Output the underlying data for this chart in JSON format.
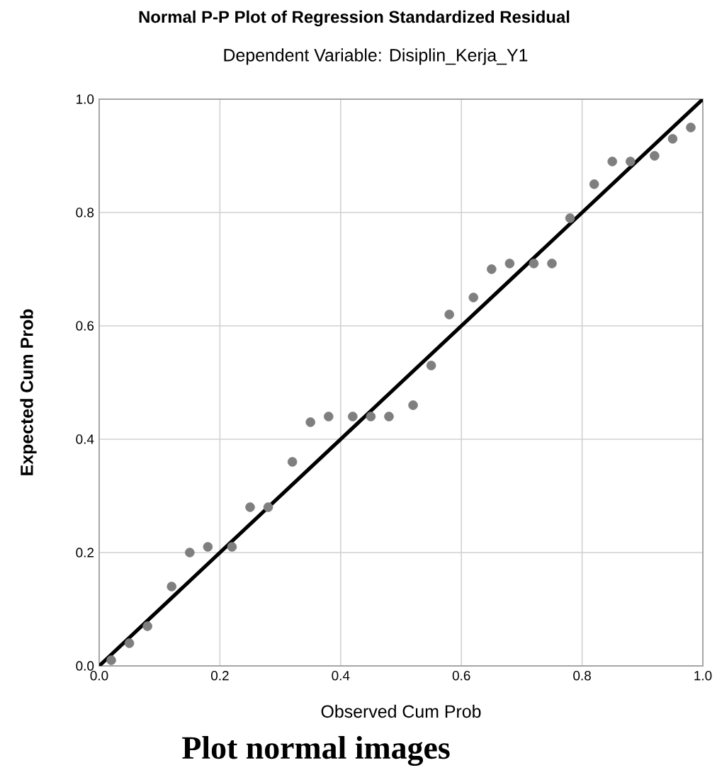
{
  "chart_data": {
    "type": "scatter",
    "title": "Normal P-P Plot of Regression Standardized Residual",
    "subtitle": "Dependent Variable: Disiplin_Kerja_Y1",
    "xlabel": "Observed Cum Prob",
    "ylabel": "Expected Cum Prob",
    "annotations": [
      "Plot normal images"
    ],
    "xlim": [
      0,
      1
    ],
    "ylim": [
      0,
      1
    ],
    "xticks": [
      {
        "value": 0,
        "label": "0.0"
      },
      {
        "value": 0.2,
        "label": "0.2"
      },
      {
        "value": 0.4,
        "label": "0.4"
      },
      {
        "value": 0.6,
        "label": "0.6"
      },
      {
        "value": 0.8,
        "label": "0.8"
      },
      {
        "value": 1,
        "label": "1.0"
      }
    ],
    "yticks": [
      {
        "value": 0,
        "label": "0.0"
      },
      {
        "value": 0.2,
        "label": "0.2"
      },
      {
        "value": 0.4,
        "label": "0.4"
      },
      {
        "value": 0.6,
        "label": "0.6"
      },
      {
        "value": 0.8,
        "label": "0.8"
      },
      {
        "value": 1,
        "label": "1.0"
      }
    ],
    "grid": true,
    "series": [
      {
        "marker": "circle",
        "color": "#7f7f7f",
        "x": [
          0.02,
          0.05,
          0.08,
          0.12,
          0.15,
          0.18,
          0.22,
          0.25,
          0.28,
          0.32,
          0.35,
          0.38,
          0.42,
          0.45,
          0.48,
          0.52,
          0.55,
          0.58,
          0.62,
          0.65,
          0.68,
          0.72,
          0.75,
          0.78,
          0.82,
          0.85,
          0.88,
          0.92,
          0.95,
          0.98
        ],
        "values": [
          0.01,
          0.04,
          0.07,
          0.14,
          0.2,
          0.21,
          0.21,
          0.28,
          0.28,
          0.36,
          0.43,
          0.44,
          0.44,
          0.44,
          0.44,
          0.46,
          0.53,
          0.62,
          0.65,
          0.7,
          0.71,
          0.71,
          0.71,
          0.79,
          0.85,
          0.89,
          0.89,
          0.9,
          0.93,
          0.95
        ]
      },
      {
        "type": "line",
        "marker": "none",
        "color": "#000000",
        "x": [
          0,
          1
        ],
        "values": [
          0,
          1
        ]
      }
    ]
  }
}
